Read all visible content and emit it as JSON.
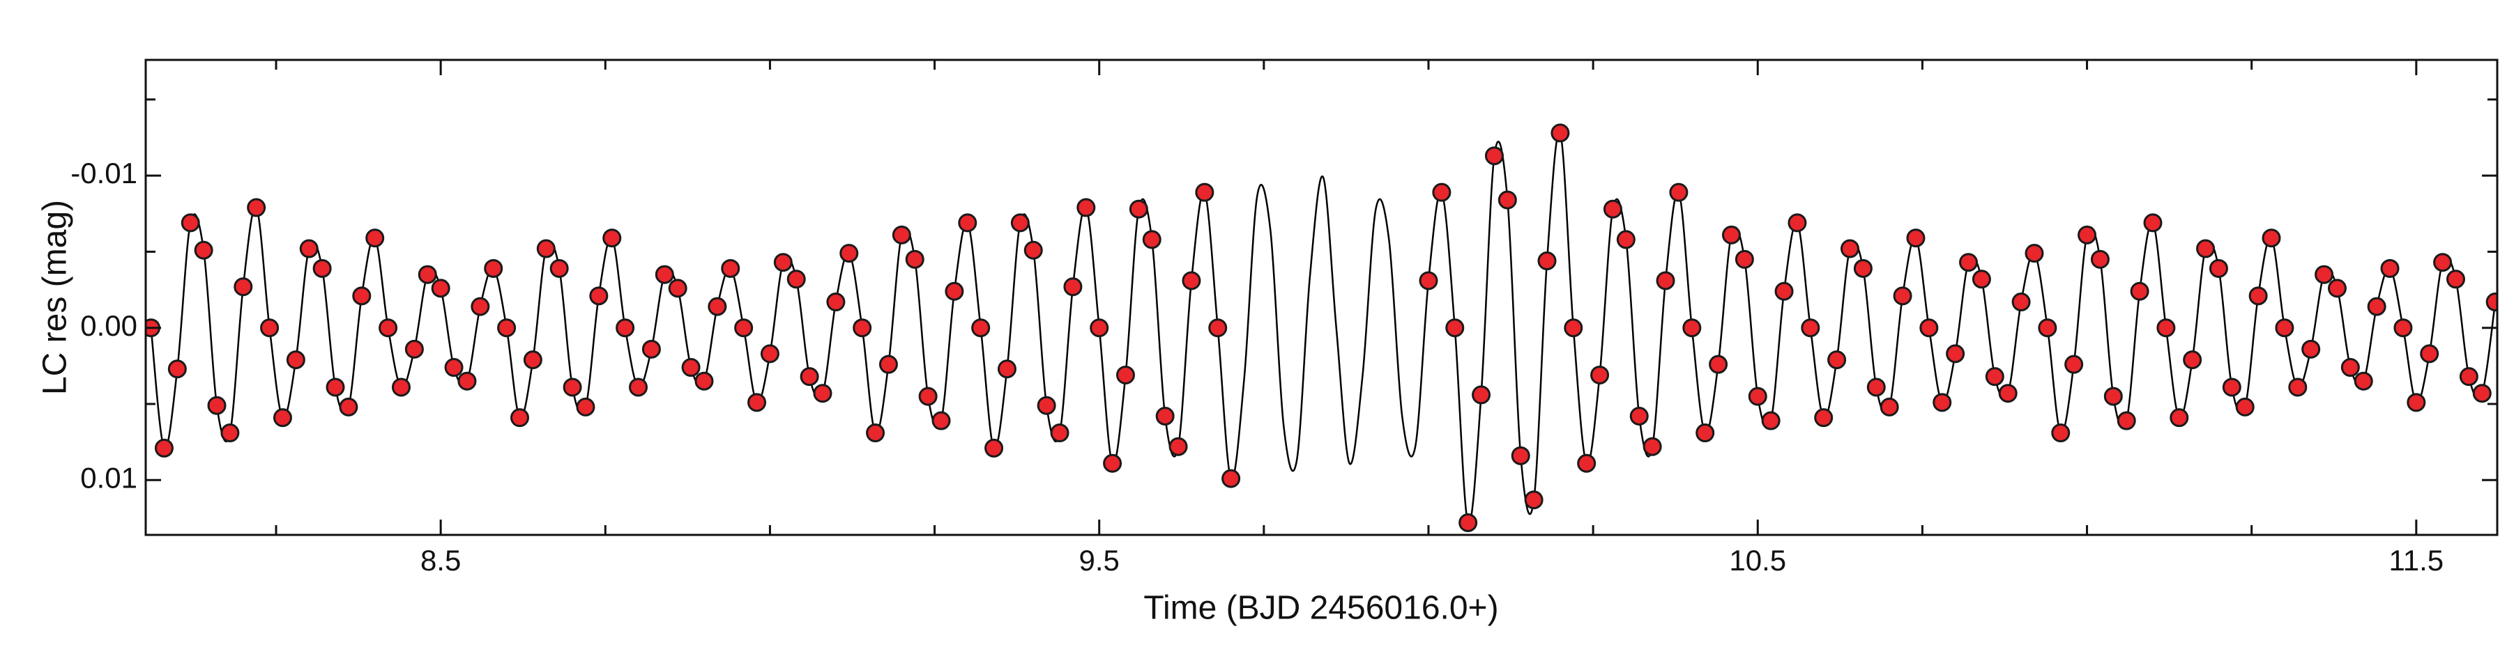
{
  "chart_data": {
    "type": "line",
    "xlabel": "Time (BJD 2456016.0+)",
    "ylabel": "LC res (mag)",
    "xlim": [
      8.052,
      11.623
    ],
    "ylim": [
      -0.0176,
      0.0136
    ],
    "y_inverted": true,
    "xticks": [
      8.5,
      9.5,
      10.5,
      11.5
    ],
    "xminorticks": [
      8.25,
      8.75,
      9,
      9.25,
      9.75,
      10,
      10.25,
      10.75,
      11,
      11.25
    ],
    "yticks": [
      -0.01,
      {
        "value": 0,
        "label": "0.00"
      },
      0.01
    ],
    "yminorticks": [
      -0.015,
      -0.005,
      0.005
    ],
    "series": [
      {
        "mark": "line",
        "color": "#000000",
        "x": [
          8.06,
          8.08,
          8.1,
          8.12,
          8.14,
          8.16,
          8.18,
          8.2,
          8.22,
          8.24,
          8.26,
          8.28,
          8.3,
          8.32,
          8.34,
          8.36,
          8.38,
          8.4,
          8.42,
          8.44,
          8.46,
          8.48,
          8.5,
          8.52,
          8.54,
          8.56,
          8.58,
          8.6,
          8.62,
          8.64,
          8.66,
          8.68,
          8.7,
          8.72,
          8.74,
          8.76,
          8.78,
          8.8,
          8.82,
          8.84,
          8.86,
          8.88,
          8.9,
          8.92,
          8.94,
          8.96,
          8.98,
          9,
          9.02,
          9.04,
          9.06,
          9.08,
          9.1,
          9.12,
          9.14,
          9.16,
          9.18,
          9.2,
          9.22,
          9.24,
          9.26,
          9.28,
          9.3,
          9.32,
          9.34,
          9.36,
          9.38,
          9.4,
          9.42,
          9.44,
          9.46,
          9.48,
          9.5,
          9.52,
          9.54,
          9.56,
          9.58,
          9.6,
          9.62,
          9.64,
          9.66,
          9.68,
          9.7,
          9.72,
          9.74,
          9.76,
          9.78,
          9.8,
          9.82,
          9.84,
          9.86,
          9.88,
          9.9,
          9.92,
          9.94,
          9.96,
          9.98,
          10,
          10.02,
          10.04,
          10.06,
          10.08,
          10.1,
          10.12,
          10.14,
          10.16,
          10.18,
          10.2,
          10.22,
          10.24,
          10.26,
          10.28,
          10.3,
          10.32,
          10.34,
          10.36,
          10.38,
          10.4,
          10.42,
          10.44,
          10.46,
          10.48,
          10.5,
          10.52,
          10.54,
          10.56,
          10.58,
          10.6,
          10.62,
          10.64,
          10.66,
          10.68,
          10.7,
          10.72,
          10.74,
          10.76,
          10.78,
          10.8,
          10.82,
          10.84,
          10.86,
          10.88,
          10.9,
          10.92,
          10.94,
          10.96,
          10.98,
          11,
          11.02,
          11.04,
          11.06,
          11.08,
          11.1,
          11.12,
          11.14,
          11.16,
          11.18,
          11.2,
          11.22,
          11.24,
          11.26,
          11.28,
          11.3,
          11.32,
          11.34,
          11.36,
          11.38,
          11.4,
          11.42,
          11.44,
          11.46,
          11.48,
          11.5,
          11.52,
          11.54,
          11.56,
          11.58,
          11.6,
          11.62
        ],
        "values": [
          0,
          0.0079,
          0.0027,
          -0.0069,
          -0.0051,
          0.0051,
          0.0069,
          -0.0027,
          -0.0079,
          0,
          0.0059,
          0.0021,
          -0.0052,
          -0.0039,
          0.0039,
          0.0052,
          -0.0021,
          -0.0059,
          0,
          0.0039,
          0.0014,
          -0.0035,
          -0.0026,
          0.0026,
          0.0035,
          -0.0014,
          -0.0039,
          0,
          0.0059,
          0.0021,
          -0.0052,
          -0.0039,
          0.0039,
          0.0052,
          -0.0021,
          -0.0059,
          0,
          0.0039,
          0.0014,
          -0.0035,
          -0.0026,
          0.0026,
          0.0035,
          -0.0014,
          -0.0039,
          0,
          0.0049,
          0.0017,
          -0.0043,
          -0.0032,
          0.0032,
          0.0043,
          -0.0017,
          -0.0049,
          0,
          0.0069,
          0.0024,
          -0.0061,
          -0.0045,
          0.0045,
          0.0061,
          -0.0024,
          -0.0069,
          0,
          0.0079,
          0.0027,
          -0.0069,
          -0.0051,
          0.0051,
          0.0069,
          -0.0027,
          -0.0079,
          0,
          0.0089,
          0.0031,
          -0.0078,
          -0.0058,
          0.0058,
          0.0078,
          -0.0031,
          -0.0089,
          0,
          0.0099,
          0.0034,
          -0.0087,
          -0.0064,
          0.0064,
          0.0087,
          -0.0034,
          -0.0099,
          0,
          0.0089,
          0.0031,
          -0.0078,
          -0.0058,
          0.0058,
          0.0078,
          -0.0031,
          -0.0089,
          0,
          0.0128,
          0.0044,
          -0.0113,
          -0.0084,
          0.0084,
          0.0113,
          -0.0044,
          -0.0128,
          0,
          0.0089,
          0.0031,
          -0.0078,
          -0.0058,
          0.0058,
          0.0078,
          -0.0031,
          -0.0089,
          0,
          0.0069,
          0.0024,
          -0.0061,
          -0.0045,
          0.0045,
          0.0061,
          -0.0024,
          -0.0069,
          0,
          0.0059,
          0.0021,
          -0.0052,
          -0.0039,
          0.0039,
          0.0052,
          -0.0021,
          -0.0059,
          0,
          0.0049,
          0.0017,
          -0.0043,
          -0.0032,
          0.0032,
          0.0043,
          -0.0017,
          -0.0049,
          0,
          0.0069,
          0.0024,
          -0.0061,
          -0.0045,
          0.0045,
          0.0061,
          -0.0024,
          -0.0069,
          0,
          0.0059,
          0.0021,
          -0.0052,
          -0.0039,
          0.0039,
          0.0052,
          -0.0021,
          -0.0059,
          0,
          0.0039,
          0.0014,
          -0.0035,
          -0.0026,
          0.0026,
          0.0035,
          -0.0014,
          -0.0039,
          0,
          0.0049,
          0.0017,
          -0.0043,
          -0.0032,
          0.0032,
          0.0043,
          -0.0017
        ]
      },
      {
        "mark": "marker",
        "color": "#e8262c",
        "edgecolor": "#1a1a1a",
        "x": [
          8.06,
          8.08,
          8.1,
          8.12,
          8.14,
          8.16,
          8.18,
          8.2,
          8.22,
          8.24,
          8.26,
          8.28,
          8.3,
          8.32,
          8.34,
          8.36,
          8.38,
          8.4,
          8.42,
          8.44,
          8.46,
          8.48,
          8.5,
          8.52,
          8.54,
          8.56,
          8.58,
          8.6,
          8.62,
          8.64,
          8.66,
          8.68,
          8.7,
          8.72,
          8.74,
          8.76,
          8.78,
          8.8,
          8.82,
          8.84,
          8.86,
          8.88,
          8.9,
          8.92,
          8.94,
          8.96,
          8.98,
          9,
          9.02,
          9.04,
          9.06,
          9.08,
          9.1,
          9.12,
          9.14,
          9.16,
          9.18,
          9.2,
          9.22,
          9.24,
          9.26,
          9.28,
          9.3,
          9.32,
          9.34,
          9.36,
          9.38,
          9.4,
          9.42,
          9.44,
          9.46,
          9.48,
          9.5,
          9.52,
          9.54,
          9.56,
          9.58,
          9.6,
          9.62,
          9.64,
          9.66,
          9.68,
          9.7,
          10,
          10.02,
          10.04,
          10.06,
          10.08,
          10.1,
          10.12,
          10.14,
          10.16,
          10.18,
          10.2,
          10.22,
          10.24,
          10.26,
          10.28,
          10.3,
          10.32,
          10.34,
          10.36,
          10.38,
          10.4,
          10.42,
          10.44,
          10.46,
          10.48,
          10.5,
          10.52,
          10.54,
          10.56,
          10.58,
          10.6,
          10.62,
          10.64,
          10.66,
          10.68,
          10.7,
          10.72,
          10.74,
          10.76,
          10.78,
          10.8,
          10.82,
          10.84,
          10.86,
          10.88,
          10.9,
          10.92,
          10.94,
          10.96,
          10.98,
          11,
          11.02,
          11.04,
          11.06,
          11.08,
          11.1,
          11.12,
          11.14,
          11.16,
          11.18,
          11.2,
          11.22,
          11.24,
          11.26,
          11.28,
          11.3,
          11.32,
          11.34,
          11.36,
          11.38,
          11.4,
          11.42,
          11.44,
          11.46,
          11.48,
          11.5,
          11.52,
          11.54,
          11.56,
          11.58,
          11.6,
          11.62
        ],
        "values": [
          0,
          0.0079,
          0.0027,
          -0.0069,
          -0.0051,
          0.0051,
          0.0069,
          -0.0027,
          -0.0079,
          0,
          0.0059,
          0.0021,
          -0.0052,
          -0.0039,
          0.0039,
          0.0052,
          -0.0021,
          -0.0059,
          0,
          0.0039,
          0.0014,
          -0.0035,
          -0.0026,
          0.0026,
          0.0035,
          -0.0014,
          -0.0039,
          0,
          0.0059,
          0.0021,
          -0.0052,
          -0.0039,
          0.0039,
          0.0052,
          -0.0021,
          -0.0059,
          0,
          0.0039,
          0.0014,
          -0.0035,
          -0.0026,
          0.0026,
          0.0035,
          -0.0014,
          -0.0039,
          0,
          0.0049,
          0.0017,
          -0.0043,
          -0.0032,
          0.0032,
          0.0043,
          -0.0017,
          -0.0049,
          0,
          0.0069,
          0.0024,
          -0.0061,
          -0.0045,
          0.0045,
          0.0061,
          -0.0024,
          -0.0069,
          0,
          0.0079,
          0.0027,
          -0.0069,
          -0.0051,
          0.0051,
          0.0069,
          -0.0027,
          -0.0079,
          0,
          0.0089,
          0.0031,
          -0.0078,
          -0.0058,
          0.0058,
          0.0078,
          -0.0031,
          -0.0089,
          0,
          0.0099,
          -0.0031,
          -0.0089,
          0,
          0.0128,
          0.0044,
          -0.0113,
          -0.0084,
          0.0084,
          0.0113,
          -0.0044,
          -0.0128,
          0,
          0.0089,
          0.0031,
          -0.0078,
          -0.0058,
          0.0058,
          0.0078,
          -0.0031,
          -0.0089,
          0,
          0.0069,
          0.0024,
          -0.0061,
          -0.0045,
          0.0045,
          0.0061,
          -0.0024,
          -0.0069,
          0,
          0.0059,
          0.0021,
          -0.0052,
          -0.0039,
          0.0039,
          0.0052,
          -0.0021,
          -0.0059,
          0,
          0.0049,
          0.0017,
          -0.0043,
          -0.0032,
          0.0032,
          0.0043,
          -0.0017,
          -0.0049,
          0,
          0.0069,
          0.0024,
          -0.0061,
          -0.0045,
          0.0045,
          0.0061,
          -0.0024,
          -0.0069,
          0,
          0.0059,
          0.0021,
          -0.0052,
          -0.0039,
          0.0039,
          0.0052,
          -0.0021,
          -0.0059,
          0,
          0.0039,
          0.0014,
          -0.0035,
          -0.0026,
          0.0026,
          0.0035,
          -0.0014,
          -0.0039,
          0,
          0.0049,
          0.0017,
          -0.0043,
          -0.0032,
          0.0032,
          0.0043,
          -0.0017
        ]
      }
    ]
  }
}
